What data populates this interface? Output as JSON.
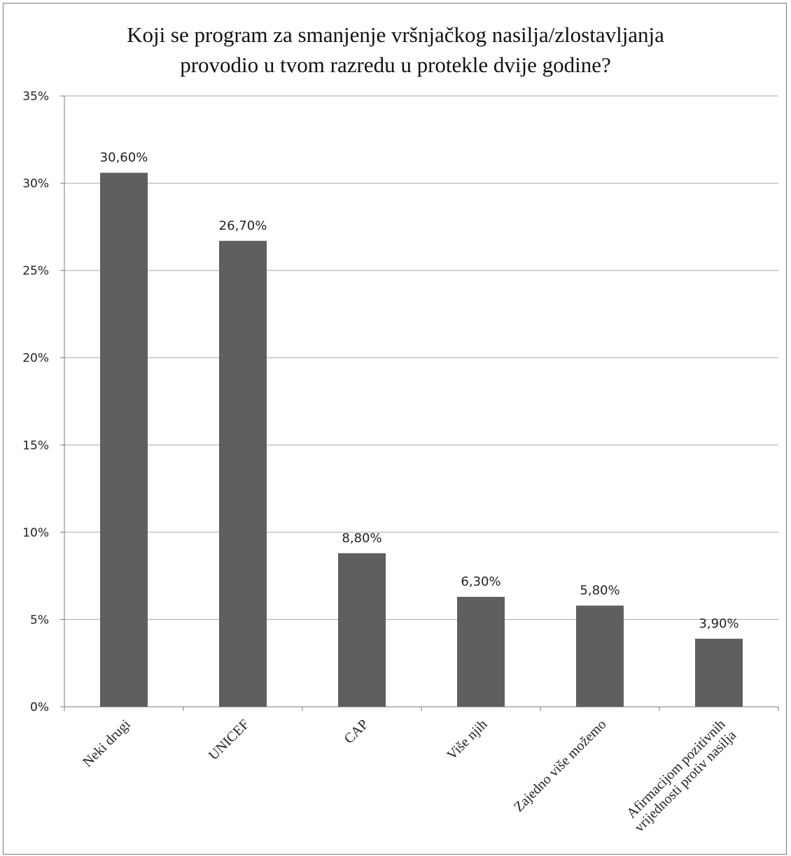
{
  "chart_data": {
    "type": "bar",
    "title": [
      "Koji se program  za smanjenje vršnjačkog  nasilja/zlostavljanja",
      "provodio  u tvom razredu u protekle dvije godine?"
    ],
    "categories": [
      "Neki drugi",
      "UNICEF",
      "CAP",
      "Više njih",
      "Zajedno više možemo",
      [
        "Afirmacijom pozitivnih",
        "vrijednosti protiv nasilja"
      ]
    ],
    "values": [
      30.6,
      26.7,
      8.8,
      6.3,
      5.8,
      3.9
    ],
    "data_labels": [
      "30,60%",
      "26,70%",
      "8,80%",
      "6,30%",
      "5,80%",
      "3,90%"
    ],
    "yticks": [
      0,
      5,
      10,
      15,
      20,
      25,
      30,
      35
    ],
    "ytick_labels": [
      "0%",
      "5%",
      "10%",
      "15%",
      "20%",
      "25%",
      "30%",
      "35%"
    ],
    "ylim": [
      0,
      35
    ],
    "grid": true,
    "bar_color": "#5f5f5f"
  }
}
